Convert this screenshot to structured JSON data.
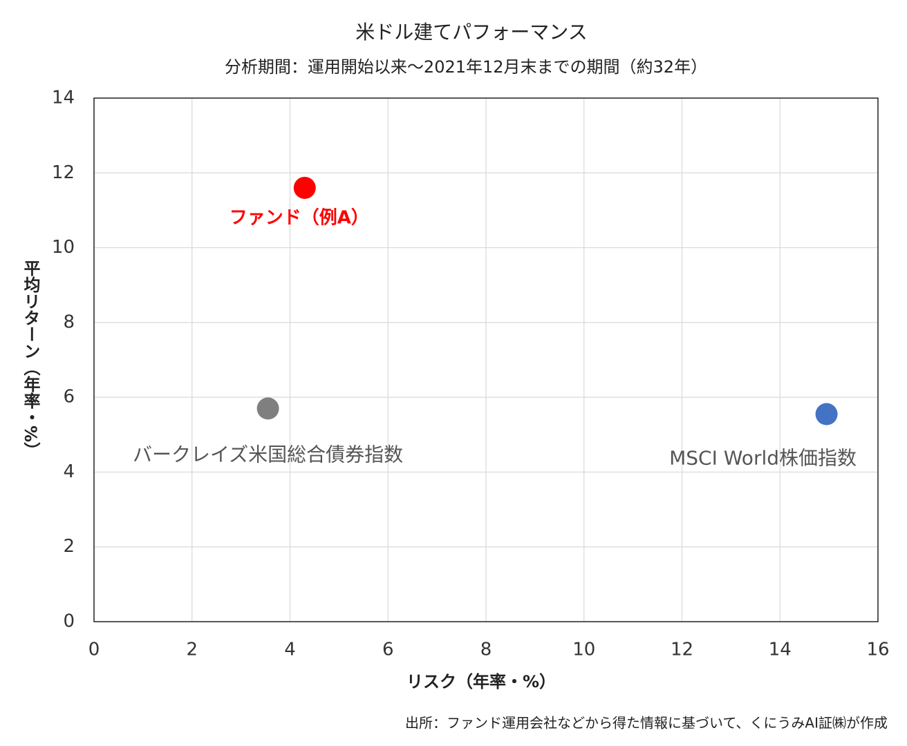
{
  "chart_data": {
    "type": "scatter",
    "title": "米ドル建てパフォーマンス",
    "subtitle": "分析期間：運用開始以来～2021年12月末までの期間（約32年）",
    "x_label": "リスク（年率・%）",
    "y_label": "平均リターン（年率・%）",
    "source": "出所：ファンド運用会社などから得た情報に基づいて、くにうみAI証㈱が作成",
    "xlim": [
      0,
      16
    ],
    "xticks": [
      0,
      2,
      4,
      6,
      8,
      10,
      12,
      14,
      16
    ],
    "ylim": [
      0,
      14
    ],
    "yticks": [
      0,
      2,
      4,
      6,
      8,
      10,
      12,
      14
    ],
    "grid": true,
    "series": [
      {
        "name": "ファンド（例A）",
        "color": "#ff0000",
        "x": [
          4.3
        ],
        "values": [
          11.6
        ]
      },
      {
        "name": "バークレイズ米国総合債券指数",
        "color": "#7f7f7f",
        "x": [
          3.55
        ],
        "values": [
          5.7
        ]
      },
      {
        "name": "MSCI World株価指数",
        "color": "#4472c4",
        "x": [
          14.95
        ],
        "values": [
          5.55
        ]
      }
    ]
  }
}
